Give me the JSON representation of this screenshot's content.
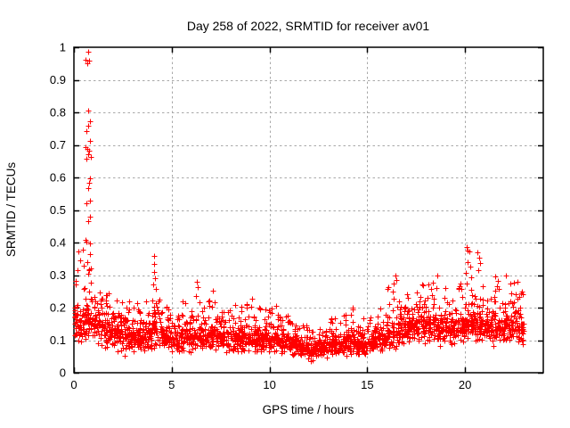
{
  "window": {
    "background": "#ffffff"
  },
  "chart_data": {
    "type": "scatter",
    "title": "Day 258 of 2022, SRMTID for receiver av01",
    "xlabel": "GPS time / hours",
    "ylabel": "SRMTID / TECUs",
    "xlim": [
      0,
      24
    ],
    "ylim": [
      0,
      1
    ],
    "xticks": [
      0,
      5,
      10,
      15,
      20
    ],
    "yticks": [
      0,
      0.1,
      0.2,
      0.3,
      0.4,
      0.5,
      0.6,
      0.7,
      0.8,
      0.9,
      1
    ],
    "grid": true,
    "grid_style": "dashed",
    "legend": "none",
    "marker": {
      "shape": "plus",
      "color": "#ff0000",
      "size": 6
    },
    "colors": {
      "marker": "#ff0000",
      "grid": "#a8a8a8",
      "axis": "#000000",
      "background": "#ffffff"
    },
    "series_description": "SRMTID values vs GPS time; dense band ~0.05-0.2 TECUs all day, large spike to ~0.99 near hour 0.7, secondary spikes near hours 4.1, 6.3, 16.5, 20.1, 20.7; data spans 0 to 23 hours",
    "density_bins": {
      "format": [
        "x_start_hours",
        "x_end_hours",
        "count",
        "y_min",
        "y_band_top",
        "y_max"
      ],
      "rows": [
        [
          0.03,
          0.5,
          52,
          0.08,
          0.2,
          0.3
        ],
        [
          0.5,
          1.0,
          55,
          0.09,
          0.22,
          0.33
        ],
        [
          1.0,
          1.5,
          58,
          0.08,
          0.2,
          0.3
        ],
        [
          1.5,
          2.0,
          58,
          0.07,
          0.18,
          0.26
        ],
        [
          2.0,
          2.5,
          58,
          0.06,
          0.17,
          0.24
        ],
        [
          2.5,
          3.0,
          58,
          0.05,
          0.16,
          0.22
        ],
        [
          3.0,
          3.5,
          56,
          0.06,
          0.15,
          0.22
        ],
        [
          3.5,
          4.0,
          56,
          0.06,
          0.15,
          0.22
        ],
        [
          4.0,
          4.5,
          56,
          0.07,
          0.18,
          0.26
        ],
        [
          4.5,
          5.0,
          56,
          0.06,
          0.14,
          0.21
        ],
        [
          5.0,
          5.5,
          54,
          0.06,
          0.14,
          0.2
        ],
        [
          5.5,
          6.0,
          54,
          0.06,
          0.15,
          0.22
        ],
        [
          6.0,
          6.5,
          54,
          0.06,
          0.16,
          0.25
        ],
        [
          6.5,
          7.0,
          54,
          0.06,
          0.15,
          0.23
        ],
        [
          7.0,
          7.5,
          54,
          0.06,
          0.15,
          0.23
        ],
        [
          7.5,
          8.0,
          54,
          0.06,
          0.14,
          0.2
        ],
        [
          8.0,
          8.5,
          54,
          0.06,
          0.14,
          0.22
        ],
        [
          8.5,
          9.0,
          54,
          0.06,
          0.14,
          0.22
        ],
        [
          9.0,
          9.5,
          54,
          0.06,
          0.14,
          0.21
        ],
        [
          9.5,
          10.0,
          54,
          0.06,
          0.13,
          0.2
        ],
        [
          10.0,
          10.5,
          54,
          0.06,
          0.14,
          0.2
        ],
        [
          10.5,
          11.0,
          54,
          0.05,
          0.13,
          0.18
        ],
        [
          11.0,
          11.5,
          54,
          0.05,
          0.12,
          0.17
        ],
        [
          11.5,
          12.0,
          54,
          0.04,
          0.11,
          0.15
        ],
        [
          12.0,
          12.5,
          54,
          0.03,
          0.1,
          0.14
        ],
        [
          12.5,
          13.0,
          54,
          0.04,
          0.11,
          0.15
        ],
        [
          13.0,
          13.5,
          54,
          0.05,
          0.12,
          0.17
        ],
        [
          13.5,
          14.0,
          54,
          0.05,
          0.12,
          0.18
        ],
        [
          14.0,
          14.5,
          54,
          0.05,
          0.13,
          0.2
        ],
        [
          14.5,
          15.0,
          54,
          0.05,
          0.12,
          0.18
        ],
        [
          15.0,
          15.5,
          54,
          0.05,
          0.13,
          0.18
        ],
        [
          15.5,
          16.0,
          54,
          0.06,
          0.14,
          0.2
        ],
        [
          16.0,
          16.5,
          54,
          0.06,
          0.17,
          0.28
        ],
        [
          16.5,
          17.0,
          54,
          0.07,
          0.18,
          0.26
        ],
        [
          17.0,
          17.5,
          54,
          0.08,
          0.19,
          0.26
        ],
        [
          17.5,
          18.0,
          54,
          0.08,
          0.2,
          0.27
        ],
        [
          18.0,
          18.5,
          54,
          0.08,
          0.2,
          0.28
        ],
        [
          18.5,
          19.0,
          54,
          0.08,
          0.19,
          0.27
        ],
        [
          19.0,
          19.5,
          54,
          0.08,
          0.18,
          0.25
        ],
        [
          19.5,
          20.0,
          54,
          0.08,
          0.19,
          0.29
        ],
        [
          20.0,
          20.5,
          56,
          0.09,
          0.21,
          0.3
        ],
        [
          20.5,
          21.0,
          54,
          0.08,
          0.18,
          0.29
        ],
        [
          21.0,
          21.5,
          54,
          0.08,
          0.19,
          0.27
        ],
        [
          21.5,
          22.0,
          54,
          0.08,
          0.18,
          0.29
        ],
        [
          22.0,
          22.5,
          56,
          0.08,
          0.2,
          0.28
        ],
        [
          22.5,
          23.0,
          56,
          0.08,
          0.18,
          0.25
        ]
      ]
    },
    "outlier_points": [
      [
        0.72,
        0.985
      ],
      [
        0.6,
        0.962
      ],
      [
        0.77,
        0.958
      ],
      [
        0.68,
        0.95
      ],
      [
        0.73,
        0.805
      ],
      [
        0.82,
        0.773
      ],
      [
        0.73,
        0.758
      ],
      [
        0.64,
        0.742
      ],
      [
        0.82,
        0.712
      ],
      [
        0.59,
        0.693
      ],
      [
        0.68,
        0.688
      ],
      [
        0.77,
        0.682
      ],
      [
        0.73,
        0.671
      ],
      [
        0.86,
        0.664
      ],
      [
        0.64,
        0.657
      ],
      [
        0.82,
        0.597
      ],
      [
        0.77,
        0.584
      ],
      [
        0.73,
        0.567
      ],
      [
        0.82,
        0.529
      ],
      [
        0.64,
        0.52
      ],
      [
        0.82,
        0.479
      ],
      [
        0.73,
        0.466
      ],
      [
        0.59,
        0.408
      ],
      [
        0.64,
        0.402
      ],
      [
        0.82,
        0.396
      ],
      [
        0.45,
        0.378
      ],
      [
        0.23,
        0.372
      ],
      [
        0.82,
        0.364
      ],
      [
        0.32,
        0.345
      ],
      [
        0.68,
        0.341
      ],
      [
        0.5,
        0.33
      ],
      [
        0.2,
        0.315
      ],
      [
        4.08,
        0.36
      ],
      [
        4.12,
        0.335
      ],
      [
        4.1,
        0.31
      ],
      [
        4.15,
        0.29
      ],
      [
        4.05,
        0.27
      ],
      [
        6.3,
        0.28
      ],
      [
        6.35,
        0.262
      ],
      [
        7.1,
        0.252
      ],
      [
        9.1,
        0.228
      ],
      [
        10.35,
        0.205
      ],
      [
        16.45,
        0.3
      ],
      [
        16.5,
        0.284
      ],
      [
        17.8,
        0.27
      ],
      [
        18.6,
        0.298
      ],
      [
        20.1,
        0.385
      ],
      [
        20.15,
        0.374
      ],
      [
        20.2,
        0.372
      ],
      [
        20.12,
        0.34
      ],
      [
        20.25,
        0.325
      ],
      [
        20.05,
        0.308
      ],
      [
        20.65,
        0.37
      ],
      [
        20.72,
        0.354
      ],
      [
        20.78,
        0.338
      ],
      [
        20.68,
        0.315
      ],
      [
        21.55,
        0.295
      ],
      [
        21.7,
        0.282
      ],
      [
        22.1,
        0.3
      ],
      [
        22.7,
        0.28
      ],
      [
        22.9,
        0.25
      ]
    ]
  }
}
